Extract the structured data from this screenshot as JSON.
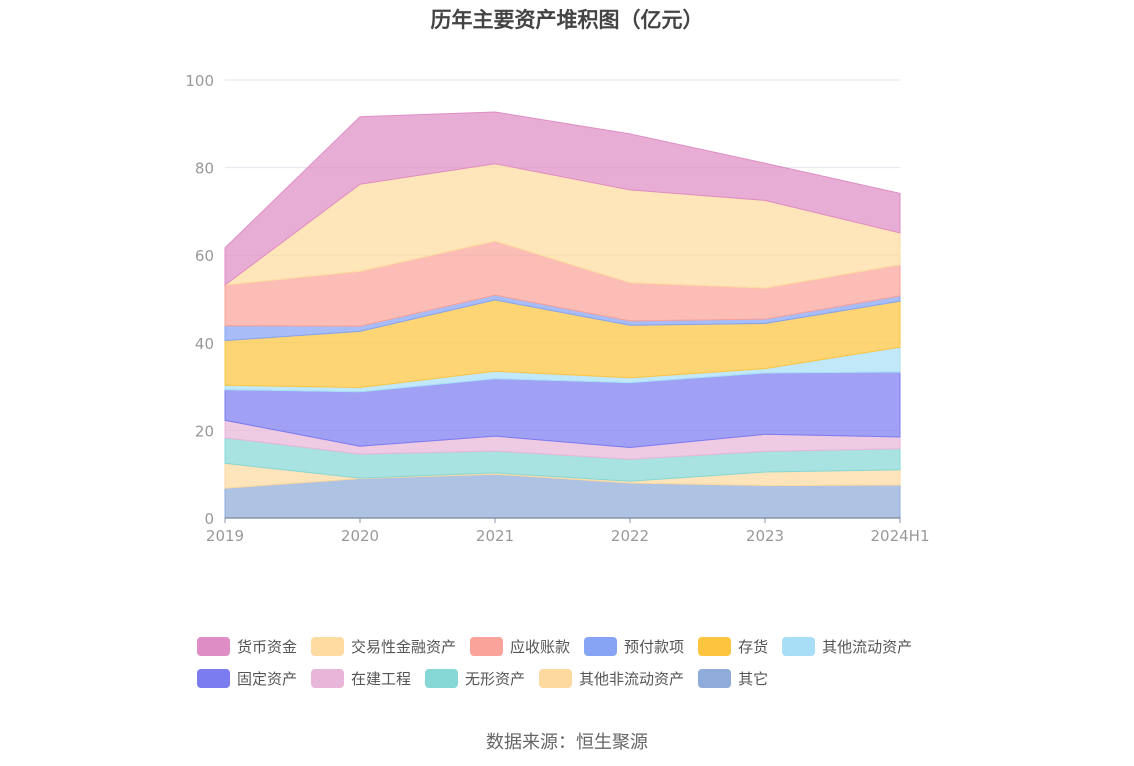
{
  "chart_data": {
    "type": "area",
    "stacked": true,
    "title": "历年主要资产堆积图（亿元）",
    "categories": [
      "2019",
      "2020",
      "2021",
      "2022",
      "2023",
      "2024H1"
    ],
    "ylim": [
      0,
      100
    ],
    "yticks": [
      0,
      20,
      40,
      60,
      80,
      100
    ],
    "grid": true,
    "legend_position": "bottom",
    "series": [
      {
        "name": "其它",
        "color": "#8fabda",
        "values": [
          6.8,
          9.0,
          10.0,
          8.0,
          7.4,
          7.5
        ]
      },
      {
        "name": "其他非流动资产",
        "color": "#fdd9a0",
        "values": [
          5.7,
          0.1,
          0.3,
          0.4,
          3.1,
          3.5
        ]
      },
      {
        "name": "无形资产",
        "color": "#86d8d6",
        "values": [
          5.8,
          5.5,
          5.0,
          5.0,
          4.7,
          4.8
        ]
      },
      {
        "name": "在建工程",
        "color": "#e8b6d8",
        "values": [
          4.0,
          1.8,
          3.4,
          2.7,
          3.9,
          2.7
        ]
      },
      {
        "name": "固定资产",
        "color": "#7b7cf0",
        "values": [
          7.0,
          12.4,
          13.1,
          14.8,
          14.0,
          14.8
        ]
      },
      {
        "name": "其他流动资产",
        "color": "#a8dff7",
        "values": [
          1.0,
          1.0,
          1.7,
          1.1,
          1.0,
          5.7
        ]
      },
      {
        "name": "存货",
        "color": "#fdc53f",
        "values": [
          10.2,
          12.8,
          16.3,
          12.0,
          10.3,
          10.5
        ]
      },
      {
        "name": "预付款项",
        "color": "#86a3f4",
        "values": [
          3.4,
          1.2,
          1.1,
          1.0,
          1.0,
          1.2
        ]
      },
      {
        "name": "应收账款",
        "color": "#faa39a",
        "values": [
          9.3,
          12.5,
          12.3,
          8.7,
          7.1,
          7.1
        ]
      },
      {
        "name": "交易性金融资产",
        "color": "#fedba0",
        "values": [
          0.0,
          19.9,
          17.7,
          21.2,
          20.0,
          7.3
        ]
      },
      {
        "name": "货币资金",
        "color": "#df8dc5",
        "values": [
          8.5,
          15.4,
          11.8,
          12.8,
          8.5,
          9.0
        ]
      }
    ]
  },
  "legend": {
    "rows": [
      [
        {
          "label": "货币资金",
          "color": "#df8dc5"
        },
        {
          "label": "交易性金融资产",
          "color": "#fedba0"
        },
        {
          "label": "应收账款",
          "color": "#faa39a"
        },
        {
          "label": "预付款项",
          "color": "#86a3f4"
        },
        {
          "label": "存货",
          "color": "#fdc53f"
        },
        {
          "label": "其他流动资产",
          "color": "#a8dff7"
        }
      ],
      [
        {
          "label": "固定资产",
          "color": "#7b7cf0"
        },
        {
          "label": "在建工程",
          "color": "#e8b6d8"
        },
        {
          "label": "无形资产",
          "color": "#86d8d6"
        },
        {
          "label": "其他非流动资产",
          "color": "#fdd9a0"
        },
        {
          "label": "其它",
          "color": "#8fabda"
        }
      ]
    ]
  },
  "source": "数据来源：恒生聚源"
}
